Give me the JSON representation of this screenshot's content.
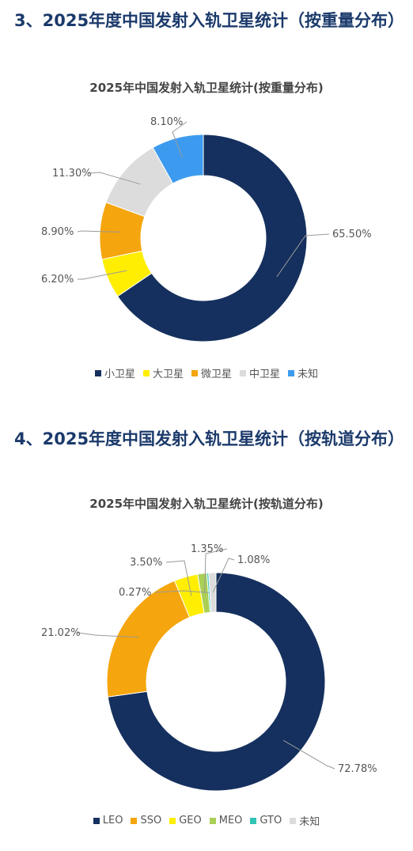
{
  "sections": [
    {
      "title": "3、2025年度中国发射入轨卫星统计（按重量分布）"
    },
    {
      "title": "4、2025年度中国发射入轨卫星统计（按轨道分布）"
    }
  ],
  "chart_data": [
    {
      "type": "pie",
      "donut": true,
      "title": "2025年中国发射入轨卫星统计(按重量分布)",
      "legend_position": "bottom",
      "categories": [
        "小卫星",
        "大卫星",
        "微卫星",
        "中卫星",
        "未知"
      ],
      "values": [
        65.5,
        6.2,
        8.9,
        11.3,
        8.1
      ],
      "data_labels": [
        "65.50%",
        "6.20%",
        "8.90%",
        "11.30%",
        "8.10%"
      ],
      "colors": [
        "#15305e",
        "#ffee00",
        "#f5a50d",
        "#dcdcdc",
        "#3d9bef"
      ]
    },
    {
      "type": "pie",
      "donut": true,
      "title": "2025年中国发射入轨卫星统计(按轨道分布)",
      "legend_position": "bottom",
      "categories": [
        "LEO",
        "SSO",
        "GEO",
        "MEO",
        "GTO",
        "未知"
      ],
      "values": [
        72.78,
        21.02,
        3.5,
        1.35,
        0.27,
        1.08
      ],
      "data_labels": [
        "72.78%",
        "21.02%",
        "3.50%",
        "1.35%",
        "0.27%",
        "1.08%"
      ],
      "colors": [
        "#15305e",
        "#f5a50d",
        "#ffee00",
        "#a9cf54",
        "#32c4b4",
        "#dcdcdc"
      ]
    }
  ]
}
